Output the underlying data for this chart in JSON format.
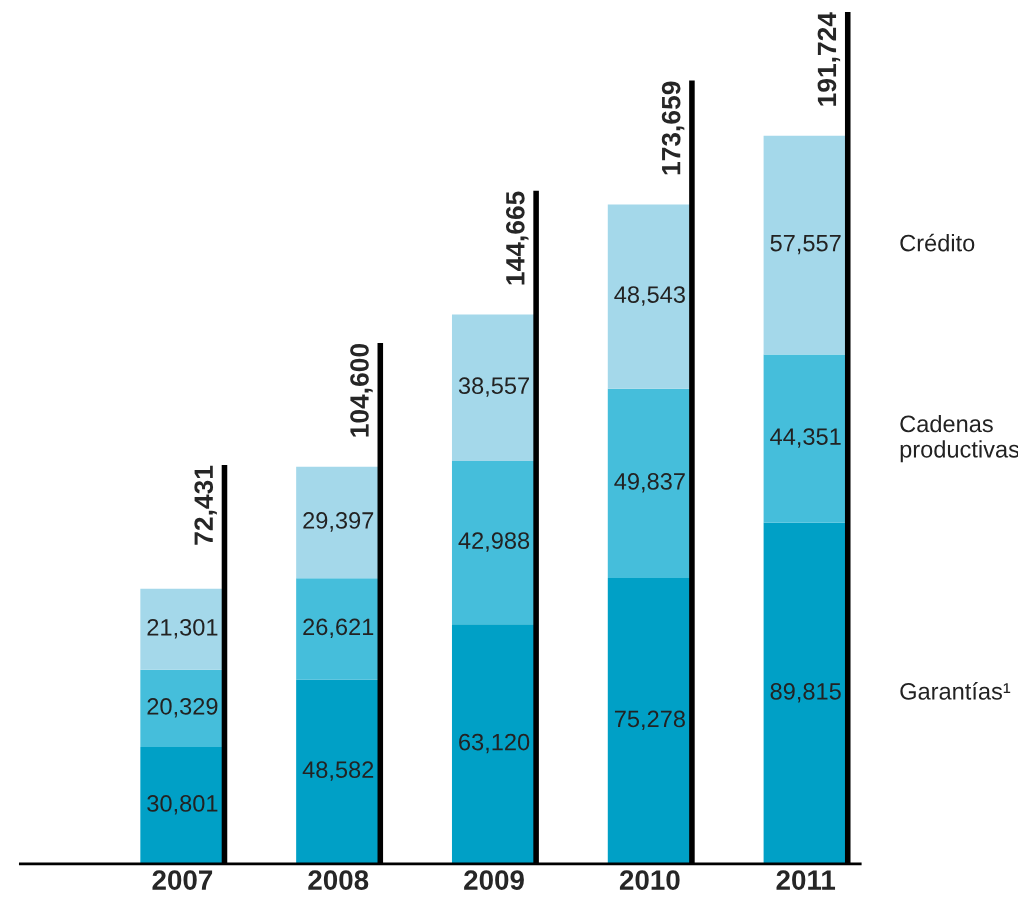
{
  "chart_data": {
    "type": "bar",
    "stacked": true,
    "categories": [
      "2007",
      "2008",
      "2009",
      "2010",
      "2011"
    ],
    "series": [
      {
        "name": "Garantías¹",
        "color": "#00a0c6",
        "values": [
          30801,
          48582,
          63120,
          75278,
          89815
        ],
        "value_labels": [
          "30,801",
          "48,582",
          "63,120",
          "75,278",
          "89,815"
        ]
      },
      {
        "name": "Cadenas productivas",
        "color": "#45bedb",
        "values": [
          20329,
          26621,
          42988,
          49837,
          44351
        ],
        "value_labels": [
          "20,329",
          "26,621",
          "42,988",
          "49,837",
          "44,351"
        ]
      },
      {
        "name": "Crédito",
        "color": "#a4d8ea",
        "values": [
          21301,
          29397,
          38557,
          48543,
          57557
        ],
        "value_labels": [
          "21,301",
          "29,397",
          "38,557",
          "48,543",
          "57,557"
        ]
      }
    ],
    "totals": [
      "72,431",
      "104,600",
      "144,665",
      "173,659",
      "191,724"
    ]
  }
}
